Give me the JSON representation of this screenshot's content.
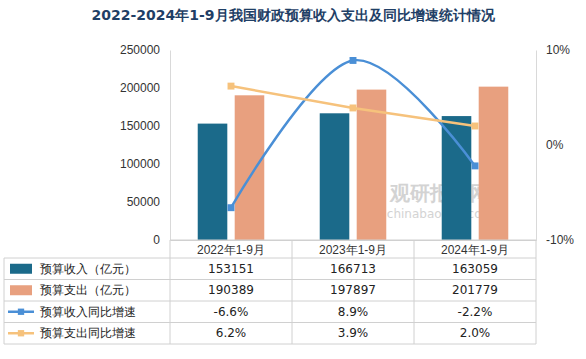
{
  "chart_data": {
    "type": "bar",
    "title": "2022-2024年1-9月我国财政预算收入支出及同比增速统计情况",
    "annotations": [
      "观研报告网",
      "chinabaogao.com"
    ],
    "categories": [
      "2022年1-9月",
      "2023年1-9月",
      "2024年1-9月"
    ],
    "ylim": [
      0,
      250000
    ],
    "yticks": [
      0,
      50000,
      100000,
      150000,
      200000,
      250000
    ],
    "y2lim": [
      -10,
      10
    ],
    "y2ticks": [
      {
        "value": -10,
        "label": "-10%"
      },
      {
        "value": 0,
        "label": "0%"
      },
      {
        "value": 10,
        "label": "10%"
      }
    ],
    "grid": false,
    "data_labels": true,
    "series": [
      {
        "name": "预算收入（亿元）",
        "type": "bar",
        "color": "#1b6a8a",
        "values": [
          153151,
          166713,
          163059
        ]
      },
      {
        "name": "预算支出（亿元）",
        "type": "bar",
        "color": "#e8a07f",
        "values": [
          190389,
          197897,
          201779
        ]
      },
      {
        "name": "预算收入同比增速",
        "type": "line",
        "axis": "y2",
        "color": "#4a8fd6",
        "marker": "square",
        "line_style": "smooth",
        "values": [
          -6.6,
          8.9,
          -2.2
        ],
        "value_labels": [
          "-6.6%",
          "8.9%",
          "-2.2%"
        ]
      },
      {
        "name": "预算支出同比增速",
        "type": "line",
        "axis": "y2",
        "color": "#f6c27c",
        "marker": "square",
        "line_style": "solid",
        "values": [
          6.2,
          3.9,
          2.0
        ],
        "value_labels": [
          "6.2%",
          "3.9%",
          "2.0%"
        ]
      }
    ]
  }
}
